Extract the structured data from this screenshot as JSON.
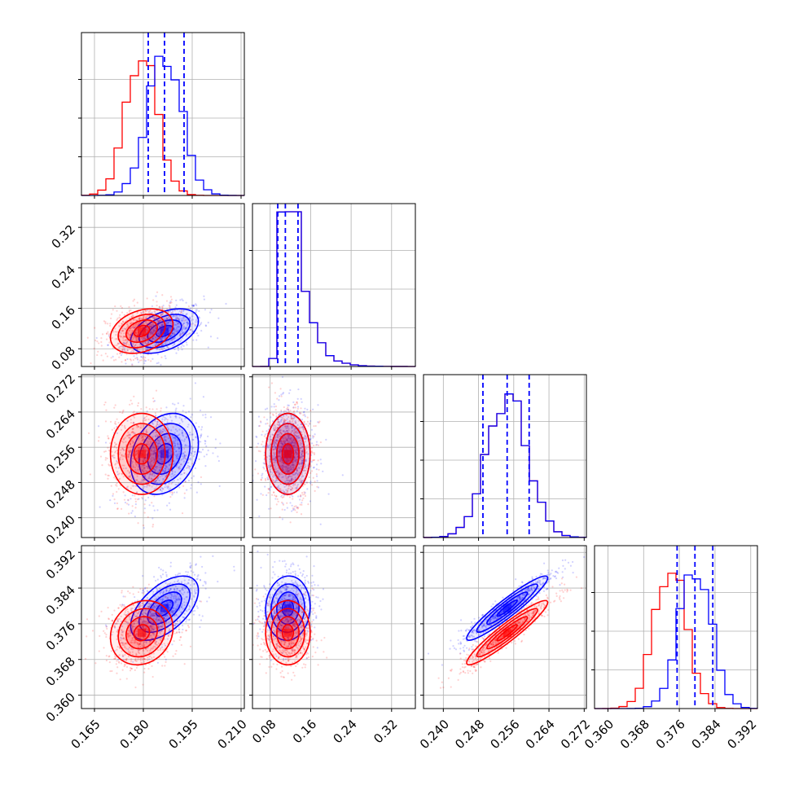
{
  "chart_data": {
    "type": "corner",
    "n_params": 4,
    "colors": {
      "blue": "#0000ff",
      "red": "#ff0000",
      "grid": "#b0b0b0",
      "frame": "#000000"
    },
    "grid": true,
    "axis_ranges": [
      [
        0.161,
        0.211
      ],
      [
        0.045,
        0.367
      ],
      [
        0.2355,
        0.2725
      ],
      [
        0.357,
        0.3935
      ]
    ],
    "x_tick_labels": [
      [
        "0.165",
        "0.180",
        "0.195",
        "0.210"
      ],
      [
        "0.08",
        "0.16",
        "0.24",
        "0.32"
      ],
      [
        "0.240",
        "0.248",
        "0.256",
        "0.264",
        "0.272"
      ],
      [
        "0.360",
        "0.368",
        "0.376",
        "0.384",
        "0.392"
      ]
    ],
    "y_tick_labels": [
      [],
      [
        "0.08",
        "0.16",
        "0.24",
        "0.32"
      ],
      [
        "0.240",
        "0.248",
        "0.256",
        "0.264",
        "0.272"
      ],
      [
        "0.360",
        "0.368",
        "0.376",
        "0.384",
        "0.392"
      ]
    ],
    "hist_ylim": [
      1.0,
      0.42,
      1.0,
      1.0
    ],
    "series": [
      {
        "color": "blue",
        "means": [
          0.1865,
          0.115,
          0.2545,
          0.3795
        ],
        "sigmas": [
          0.0052,
          0.022,
          0.0046,
          0.0036
        ],
        "quantiles": [
          [
            0.1815,
            0.1865,
            0.1925
          ],
          [
            0.095,
            0.11,
            0.135
          ],
          [
            0.249,
            0.2545,
            0.2595
          ],
          [
            0.3755,
            0.3795,
            0.3835
          ]
        ]
      },
      {
        "color": "red",
        "means": [
          0.1795,
          0.115,
          0.2545,
          0.374
        ],
        "sigmas": [
          0.0048,
          0.022,
          0.0046,
          0.0036
        ],
        "quantiles": []
      }
    ],
    "correlations": {
      "blue": {
        "0-1": 0.45,
        "0-2": 0.25,
        "0-3": 0.55,
        "1-2": 0.0,
        "1-3": 0.05,
        "2-3": 0.94
      },
      "red": {
        "0-1": 0.3,
        "0-2": 0.0,
        "0-3": 0.15,
        "1-2": 0.0,
        "1-3": 0.0,
        "2-3": 0.94
      }
    }
  }
}
